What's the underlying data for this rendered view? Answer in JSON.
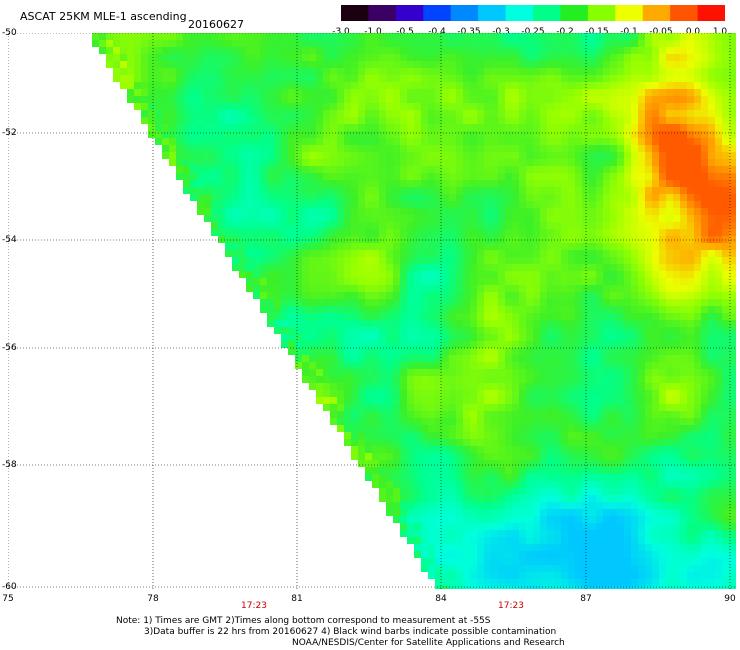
{
  "header": {
    "title": "ASCAT 25KM MLE-1 ascending",
    "date": "20160627"
  },
  "colorbar": {
    "labels": [
      "-3.0",
      "-1.0",
      "-0.5",
      "-0.4",
      "-0.35",
      "-0.3",
      "-0.25",
      "-0.2",
      "-0.15",
      "-0.1",
      "-0.05",
      "0.0",
      "1.0"
    ],
    "colors": [
      "#1a0010",
      "#3a0066",
      "#3300cc",
      "#0044ff",
      "#0088ff",
      "#00c8ff",
      "#00ffe0",
      "#00ff88",
      "#22ee22",
      "#88ff00",
      "#eeff00",
      "#ffaa00",
      "#ff5500",
      "#ff1100"
    ]
  },
  "axes": {
    "lat_labels": [
      "-50",
      "-52",
      "-54",
      "-56",
      "-58",
      "-60"
    ],
    "lon_labels": [
      "75",
      "78",
      "81",
      "84",
      "87",
      "90"
    ],
    "time_labels": [
      "17:23",
      "17:23"
    ]
  },
  "notes": {
    "line1": "Note: 1) Times are GMT 2)Times along bottom correspond to measurement at -55S",
    "line2": "3)Data buffer is 22 hrs from 20160627 4) Black wind barbs indicate possible contamination",
    "line3": "NOAA/NESDIS/Center for Satellite Applications and Research"
  }
}
